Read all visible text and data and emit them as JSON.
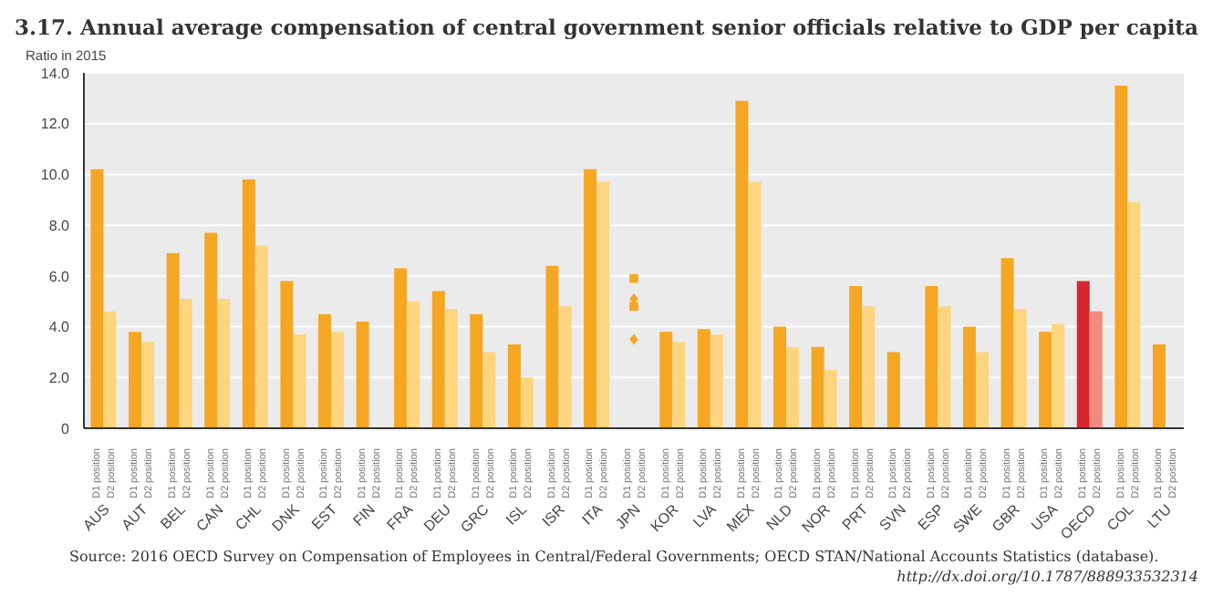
{
  "chart_data": {
    "type": "bar",
    "title": "3.17. Annual average compensation of central government senior officials relative to GDP per capita",
    "ylabel": "Ratio  in 2015",
    "categories": [
      "AUS",
      "AUT",
      "BEL",
      "CAN",
      "CHL",
      "DNK",
      "EST",
      "FIN",
      "FRA",
      "DEU",
      "GRC",
      "ISL",
      "ISR",
      "ITA",
      "JPN",
      "KOR",
      "LVA",
      "MEX",
      "NLD",
      "NOR",
      "PRT",
      "SVN",
      "ESP",
      "SWE",
      "GBR",
      "USA",
      "OECD",
      "COL",
      "LTU"
    ],
    "series": [
      {
        "name": "D1 position",
        "colors": [
          "#f5a623",
          "#f5a623",
          "#f5a623",
          "#f5a623",
          "#f5a623",
          "#f5a623",
          "#f5a623",
          "#f5a623",
          "#f5a623",
          "#f5a623",
          "#f5a623",
          "#f5a623",
          "#f5a623",
          "#f5a623",
          "#f5a623",
          "#f5a623",
          "#f5a623",
          "#f5a623",
          "#f5a623",
          "#f5a623",
          "#f5a623",
          "#f5a623",
          "#f5a623",
          "#f5a623",
          "#f5a623",
          "#f5a623",
          "#d7262b",
          "#f5a623",
          "#f5a623"
        ],
        "values": [
          10.2,
          3.8,
          6.9,
          7.7,
          9.8,
          5.8,
          4.5,
          4.2,
          6.3,
          5.4,
          4.5,
          3.3,
          6.4,
          10.2,
          null,
          3.8,
          3.9,
          12.9,
          4.0,
          3.2,
          5.6,
          3.0,
          5.6,
          4.0,
          6.7,
          3.8,
          5.8,
          13.5,
          3.3
        ]
      },
      {
        "name": "D2 position",
        "colors": [
          "#fdd57e",
          "#fdd57e",
          "#fdd57e",
          "#fdd57e",
          "#fdd57e",
          "#fdd57e",
          "#fdd57e",
          "#fdd57e",
          "#fdd57e",
          "#fdd57e",
          "#fdd57e",
          "#fdd57e",
          "#fdd57e",
          "#fdd57e",
          "#fdd57e",
          "#fdd57e",
          "#fdd57e",
          "#fdd57e",
          "#fdd57e",
          "#fdd57e",
          "#fdd57e",
          "#fdd57e",
          "#fdd57e",
          "#fdd57e",
          "#fdd57e",
          "#fdd57e",
          "#f28b7d",
          "#fdd57e",
          "#fdd57e"
        ],
        "values": [
          4.6,
          3.4,
          5.1,
          5.1,
          7.2,
          3.7,
          3.8,
          null,
          5.0,
          4.7,
          3.0,
          2.0,
          4.8,
          9.7,
          null,
          3.4,
          3.7,
          9.7,
          3.2,
          2.3,
          4.8,
          null,
          4.8,
          3.0,
          4.7,
          4.1,
          4.6,
          8.9,
          null
        ]
      },
      {
        "type": "scatter",
        "marker": "square",
        "color": "#f5a623",
        "x": [
          "JPN"
        ],
        "values": [
          5.9
        ]
      },
      {
        "type": "scatter",
        "marker": "diamond",
        "color": "#f5a623",
        "x": [
          "JPN"
        ],
        "values": [
          5.1
        ]
      },
      {
        "type": "scatter",
        "marker": "square",
        "color": "#f5a623",
        "x": [
          "JPN"
        ],
        "values": [
          4.8
        ]
      },
      {
        "type": "scatter",
        "marker": "diamond",
        "color": "#f5a623",
        "x": [
          "JPN"
        ],
        "values": [
          3.5
        ]
      }
    ],
    "ylim": [
      0,
      14
    ],
    "yticks": [
      0,
      {
        "value": 2,
        "label": "2.0"
      },
      {
        "value": 4,
        "label": "4.0"
      },
      {
        "value": 6,
        "label": "6.0"
      },
      {
        "value": 8,
        "label": "8.0"
      },
      {
        "value": 10,
        "label": "10.0"
      },
      {
        "value": 12,
        "label": "12.0"
      },
      {
        "value": 14,
        "label": "14.0"
      }
    ],
    "grid": "y",
    "legend": false,
    "annotations": [
      "Source: 2016 OECD Survey on Compensation of Employees in Central/Federal Governments; OECD STAN/National Accounts Statistics (database).",
      "http://dx.doi.org/10.1787/888933532314"
    ]
  }
}
